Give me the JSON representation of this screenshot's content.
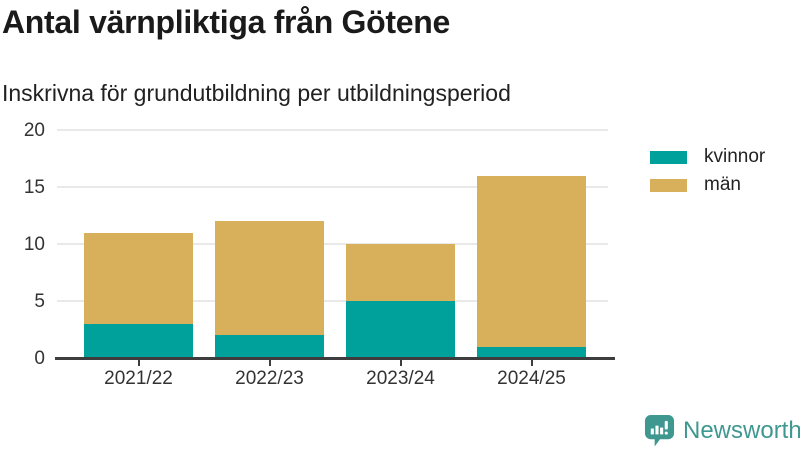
{
  "title": "Antal värnpliktiga från Götene",
  "subtitle": "Inskrivna för grundutbildning per utbildningsperiod",
  "chart_data": {
    "type": "bar",
    "stacked": true,
    "categories": [
      "2021/22",
      "2022/23",
      "2023/24",
      "2024/25"
    ],
    "series": [
      {
        "name": "kvinnor",
        "color": "#00a19a",
        "values": [
          3,
          2,
          5,
          1
        ]
      },
      {
        "name": "män",
        "color": "#d8b05c",
        "values": [
          8,
          10,
          5,
          15
        ]
      }
    ],
    "totals": [
      11,
      12,
      10,
      16
    ],
    "ylabel": "",
    "xlabel": "",
    "ylim": [
      0,
      20
    ],
    "yticks": [
      0,
      5,
      10,
      15,
      20
    ],
    "grid": true,
    "legend_position": "right"
  },
  "branding": {
    "logo_text": "Newsworthy",
    "logo_color": "#3f9890",
    "logo_icon_name": "bar-chart-speech-bubble-icon"
  },
  "style_colors": {
    "axis_line": "#3d3d3d",
    "gridline": "#e9e9e9",
    "tick_text": "#333333",
    "title_text": "#1a1a1a"
  }
}
